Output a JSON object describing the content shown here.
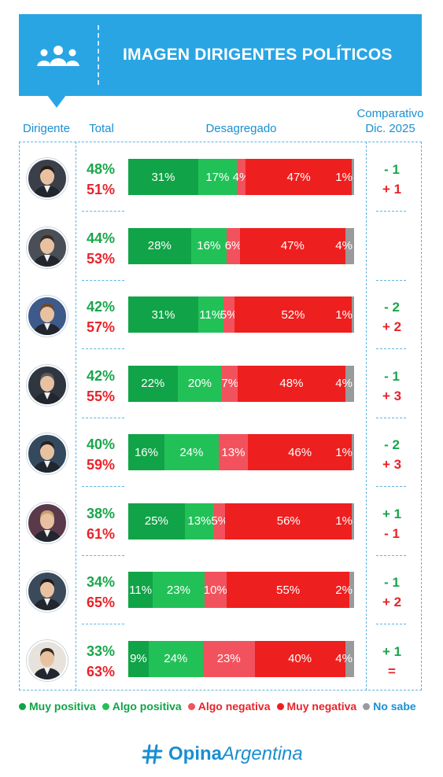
{
  "header": {
    "title": "IMAGEN DIRIGENTES POLÍTICOS",
    "icon": "group-people-icon"
  },
  "columns": {
    "dirigente": "Dirigente",
    "total": "Total",
    "desagregado": "Desagregado",
    "comparativo_1": "Comparativo",
    "comparativo_2": "Dic. 2025"
  },
  "legend": [
    {
      "label": "Muy positiva",
      "color": "#11a347"
    },
    {
      "label": "Algo positiva",
      "color": "#22c158"
    },
    {
      "label": "Algo negativa",
      "color": "#f2525d"
    },
    {
      "label": "Muy negativa",
      "color": "#ee1f1f"
    },
    {
      "label": "No sabe",
      "color": "#9a9a9a"
    }
  ],
  "colors": {
    "header_bg": "#2aa5e3",
    "positive_text": "#18a64a",
    "negative_text": "#e8232a",
    "accent": "#1a8fd0"
  },
  "rows": [
    {
      "positive_total": "48%",
      "negative_total": "51%",
      "cmp_positive": "- 1",
      "cmp_negative": "+ 1"
    },
    {
      "positive_total": "44%",
      "negative_total": "53%",
      "cmp_positive": "",
      "cmp_negative": ""
    },
    {
      "positive_total": "42%",
      "negative_total": "57%",
      "cmp_positive": "- 2",
      "cmp_negative": "+ 2"
    },
    {
      "positive_total": "42%",
      "negative_total": "55%",
      "cmp_positive": "- 1",
      "cmp_negative": "+ 3"
    },
    {
      "positive_total": "40%",
      "negative_total": "59%",
      "cmp_positive": "- 2",
      "cmp_negative": "+ 3"
    },
    {
      "positive_total": "38%",
      "negative_total": "61%",
      "cmp_positive": "+ 1",
      "cmp_negative": "- 1"
    },
    {
      "positive_total": "34%",
      "negative_total": "65%",
      "cmp_positive": "- 1",
      "cmp_negative": "+ 2"
    },
    {
      "positive_total": "33%",
      "negative_total": "63%",
      "cmp_positive": "+ 1",
      "cmp_negative": "="
    }
  ],
  "chart_data": {
    "type": "bar",
    "stacked": true,
    "orientation": "horizontal",
    "title": "IMAGEN DIRIGENTES POLÍTICOS",
    "series": [
      {
        "name": "Muy positiva",
        "values": [
          31,
          28,
          31,
          22,
          16,
          25,
          11,
          9
        ]
      },
      {
        "name": "Algo positiva",
        "values": [
          17,
          16,
          11,
          20,
          24,
          13,
          23,
          24
        ]
      },
      {
        "name": "Algo negativa",
        "values": [
          4,
          6,
          5,
          7,
          13,
          5,
          10,
          23
        ]
      },
      {
        "name": "Muy negativa",
        "values": [
          47,
          47,
          52,
          48,
          46,
          56,
          55,
          40
        ]
      },
      {
        "name": "No sabe",
        "values": [
          1,
          4,
          1,
          4,
          1,
          1,
          2,
          4
        ]
      }
    ],
    "legend_position": "bottom"
  },
  "footer": {
    "logo_part1": "Opina",
    "logo_part2": "Argentina"
  }
}
